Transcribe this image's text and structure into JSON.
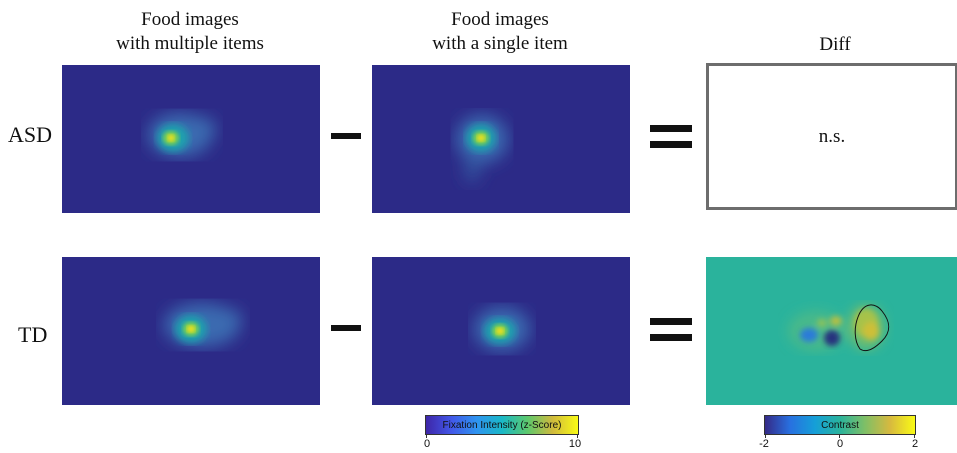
{
  "columns": {
    "multiple": {
      "line1": "Food images",
      "line2": "with multiple items"
    },
    "single": {
      "line1": "Food images",
      "line2": "with a single item"
    },
    "diff": {
      "title": "Diff"
    }
  },
  "rows": {
    "asd": "ASD",
    "td": "TD"
  },
  "diff_asd_text": "n.s.",
  "colorbar_fixation": {
    "label": "Fixation Intensity (z-Score)",
    "ticks": [
      "0",
      "10"
    ]
  },
  "colorbar_contrast": {
    "label": "Contrast",
    "ticks": [
      "-2",
      "0",
      "2"
    ]
  },
  "colors": {
    "heatmap_bg": "#2c2a87",
    "contrast_bg": "#2ab39c",
    "frame": "#6d6d6d"
  }
}
